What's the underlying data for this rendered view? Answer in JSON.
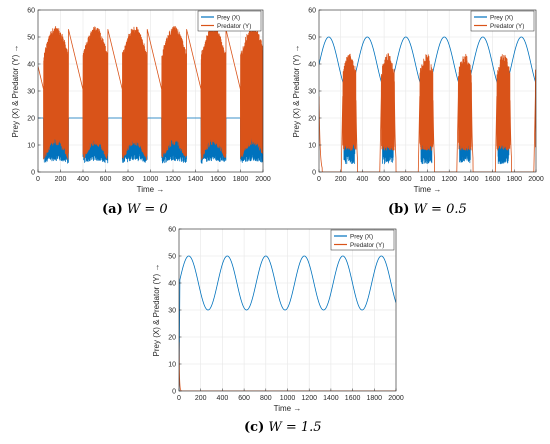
{
  "panels": [
    {
      "caption": {
        "letter": "(a)",
        "text": "W = 0"
      },
      "chart_data": {
        "type": "line",
        "xlabel": "Time →",
        "ylabel": "Prey (X) & Predator (Y) →",
        "xlim": [
          0,
          2000
        ],
        "ylim": [
          0,
          60
        ],
        "xticks": [
          0,
          200,
          400,
          600,
          800,
          1000,
          1200,
          1400,
          1600,
          1800,
          2000
        ],
        "yticks": [
          0,
          10,
          20,
          30,
          40,
          50,
          60
        ],
        "grid": true,
        "legend": "top-right",
        "series": [
          {
            "name": "Prey (X)",
            "color": "#0072BD",
            "envelope": {
              "mode": "band",
              "period": 350,
              "phase": 0,
              "hot_start": 50,
              "hot_end": 270,
              "lo_cold": [
                2,
                16
              ],
              "lo_hot": [
                3,
                5
              ],
              "hi_cold": [
                20,
                12
              ],
              "hi_hot": [
                17,
                24
              ]
            }
          },
          {
            "name": "Predator (Y)",
            "color": "#D95319",
            "envelope": {
              "mode": "band",
              "period": 350,
              "phase": 0,
              "hot_start": 50,
              "hot_end": 270,
              "lo_cold": [
                28,
                20
              ],
              "lo_hot": [
                4,
                14
              ],
              "hi_cold": [
                53,
                48
              ],
              "hi_hot": [
                44,
                54
              ]
            }
          }
        ]
      }
    },
    {
      "caption": {
        "letter": "(b)",
        "text": "W = 0.5"
      },
      "chart_data": {
        "type": "line",
        "xlabel": "Time →",
        "ylabel": "Prey (X) & Predator (Y) →",
        "xlim": [
          0,
          2000
        ],
        "ylim": [
          0,
          60
        ],
        "xticks": [
          0,
          200,
          400,
          600,
          800,
          1000,
          1200,
          1400,
          1600,
          1800,
          2000
        ],
        "yticks": [
          0,
          10,
          20,
          30,
          40,
          50,
          60
        ],
        "grid": true,
        "legend": "top-right",
        "series": [
          {
            "name": "Prey (X)",
            "color": "#0072BD",
            "envelope": {
              "mode": "sine_band",
              "period": 355,
              "center": 40,
              "amp": 10,
              "phase_x": 90,
              "noise_start": 230,
              "noise_end": 330,
              "noise_lo": 3,
              "noise_hi": 17
            }
          },
          {
            "name": "Predator (Y)",
            "color": "#D95319",
            "envelope": {
              "mode": "pulse_band",
              "period": 355,
              "start": 220,
              "end": 340,
              "lo": 8,
              "hi": 44,
              "pre": 28
            }
          }
        ]
      }
    },
    {
      "caption": {
        "letter": "(c)",
        "text": "W = 1.5"
      },
      "chart_data": {
        "type": "line",
        "xlabel": "Time →",
        "ylabel": "Prey (X) & Predator (Y) →",
        "xlim": [
          0,
          2000
        ],
        "ylim": [
          0,
          60
        ],
        "xticks": [
          0,
          200,
          400,
          600,
          800,
          1000,
          1200,
          1400,
          1600,
          1800,
          2000
        ],
        "yticks": [
          0,
          10,
          20,
          30,
          40,
          50,
          60
        ],
        "grid": true,
        "legend": "top-right",
        "series": [
          {
            "name": "Prey (X)",
            "color": "#0072BD",
            "envelope": {
              "mode": "sine",
              "period": 355,
              "center": 40,
              "amp": 10,
              "phase_x": 90,
              "start": 40
            }
          },
          {
            "name": "Predator (Y)",
            "color": "#D95319",
            "envelope": {
              "mode": "decay",
              "start": 18,
              "tau": 4
            }
          }
        ]
      }
    }
  ]
}
